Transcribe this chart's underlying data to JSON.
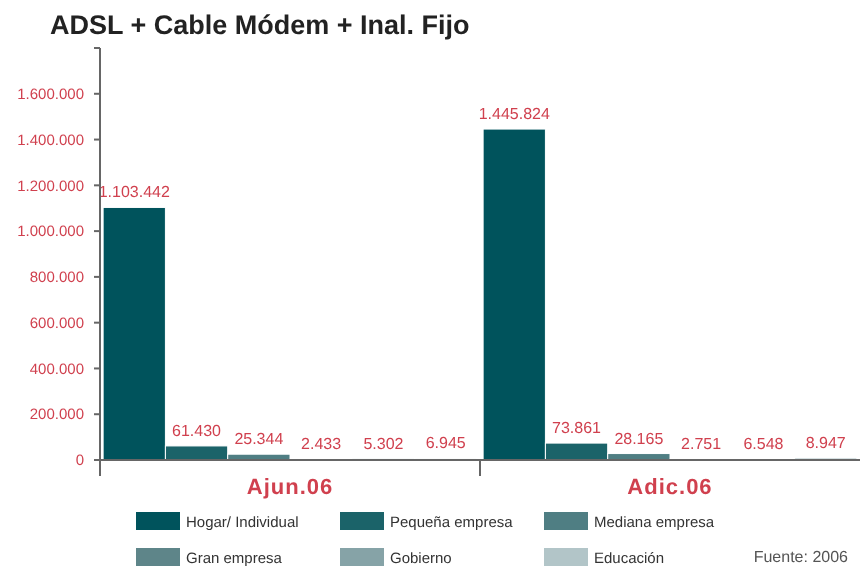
{
  "chart_data": {
    "type": "bar",
    "title": "ADSL + Cable Módem + Inal. Fijo",
    "categories": [
      "Ajun.06",
      "Adic.06"
    ],
    "series": [
      {
        "name": "Hogar/ Individual",
        "color": "#00535c",
        "values": [
          1103442,
          1445824
        ],
        "value_labels": [
          "1.103.442",
          "1.445.824"
        ]
      },
      {
        "name": "Pequeña empresa",
        "color": "#1b6369",
        "values": [
          61430,
          73861
        ],
        "value_labels": [
          "61.430",
          "73.861"
        ]
      },
      {
        "name": "Mediana empresa",
        "color": "#4f7e83",
        "values": [
          25344,
          28165
        ],
        "value_labels": [
          "25.344",
          "28.165"
        ]
      },
      {
        "name": "Gran empresa",
        "color": "#5e8589",
        "values": [
          2433,
          2751
        ],
        "value_labels": [
          "2.433",
          "2.751"
        ]
      },
      {
        "name": "Gobierno",
        "color": "#86a3a7",
        "values": [
          5302,
          6548
        ],
        "value_labels": [
          "5.302",
          "6.548"
        ]
      },
      {
        "name": "Educación",
        "color": "#b2c5c8",
        "values": [
          6945,
          8947
        ],
        "value_labels": [
          "6.945",
          "8.947"
        ]
      }
    ],
    "ylim": [
      0,
      1800000
    ],
    "yticks": [
      {
        "value": 0,
        "label": "0"
      },
      {
        "value": 200000,
        "label": "200.000"
      },
      {
        "value": 400000,
        "label": "400.000"
      },
      {
        "value": 600000,
        "label": "600.000"
      },
      {
        "value": 800000,
        "label": "800.000"
      },
      {
        "value": 1000000,
        "label": "1.000.000"
      },
      {
        "value": 1200000,
        "label": "1.200.000"
      },
      {
        "value": 1400000,
        "label": "1.400.000"
      },
      {
        "value": 1600000,
        "label": "1.600.000"
      },
      {
        "value": 1800000,
        "label": null
      }
    ],
    "legend": "bottom",
    "annotations": [
      "Fuente: 2006"
    ]
  }
}
